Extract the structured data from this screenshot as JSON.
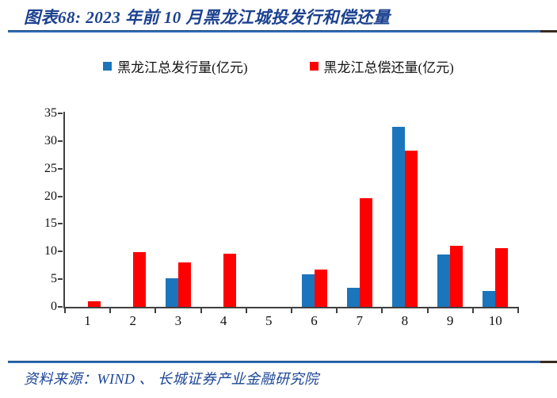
{
  "header": {
    "title": "图表68: 2023 年前 10 月黑龙江城投发行和偿还量"
  },
  "footer": {
    "source": "资料来源：WIND 、 长城证券产业金融研究院"
  },
  "colors": {
    "title_blue": "#1c4190",
    "rule_blue": "#2e6cb5",
    "rule_dark_tip": "#38291f",
    "series_blue": "#1b75bc",
    "series_red": "#fe0000",
    "axis_gray": "#404040"
  },
  "chart_data": {
    "type": "bar",
    "title": "图表68: 2023 年前 10 月黑龙江城投发行和偿还量",
    "categories": [
      "1",
      "2",
      "3",
      "4",
      "5",
      "6",
      "7",
      "8",
      "9",
      "10"
    ],
    "series": [
      {
        "name": "黑龙江总发行量(亿元)",
        "color": "#1b75bc",
        "values": [
          0,
          0,
          5.2,
          0,
          0,
          5.9,
          3.5,
          32.5,
          9.5,
          2.9
        ]
      },
      {
        "name": "黑龙江总偿还量(亿元)",
        "color": "#fe0000",
        "values": [
          1.0,
          9.9,
          8.0,
          9.6,
          0,
          6.8,
          19.6,
          28.2,
          11.1,
          10.6
        ]
      }
    ],
    "xlabel": "",
    "ylabel": "",
    "ylim": [
      0,
      35
    ],
    "ytick_step": 5,
    "grid": false,
    "legend_position": "top",
    "bar_layout": "clustered"
  }
}
